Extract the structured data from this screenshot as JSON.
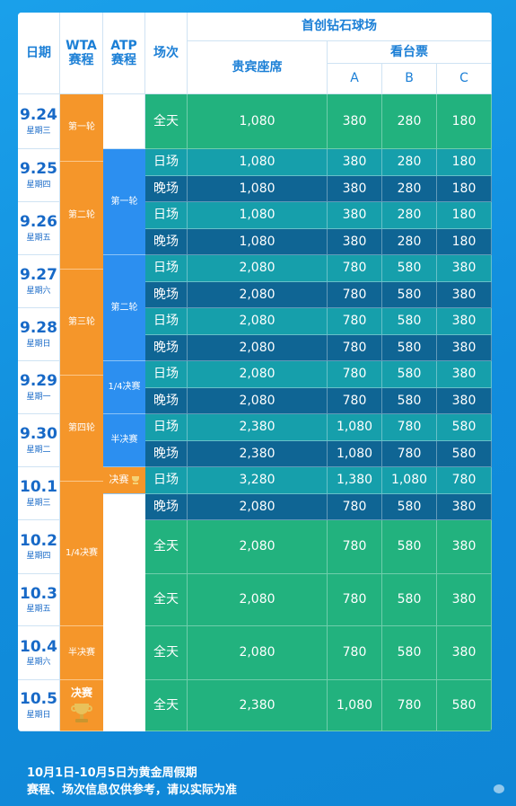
{
  "header": {
    "date": "日期",
    "wta": "WTA\n赛程",
    "atp": "ATP\n赛程",
    "session": "场次",
    "venue": "首创钻石球场",
    "vip": "贵宾座席",
    "stand": "看台票",
    "zone_a": "A",
    "zone_b": "B",
    "zone_c": "C"
  },
  "dates": [
    {
      "date": "9.24",
      "weekday": "星期三"
    },
    {
      "date": "9.25",
      "weekday": "星期四"
    },
    {
      "date": "9.26",
      "weekday": "星期五"
    },
    {
      "date": "9.27",
      "weekday": "星期六"
    },
    {
      "date": "9.28",
      "weekday": "星期日"
    },
    {
      "date": "9.29",
      "weekday": "星期一"
    },
    {
      "date": "9.30",
      "weekday": "星期二"
    },
    {
      "date": "10.1",
      "weekday": "星期三"
    },
    {
      "date": "10.2",
      "weekday": "星期四"
    },
    {
      "date": "10.3",
      "weekday": "星期五"
    },
    {
      "date": "10.4",
      "weekday": "星期六"
    },
    {
      "date": "10.5",
      "weekday": "星期日"
    }
  ],
  "wta_rounds": [
    "第一轮",
    "第二轮",
    "第三轮",
    "第四轮",
    "1/4决赛",
    "半决赛",
    "决赛"
  ],
  "atp_rounds": [
    "第一轮",
    "第二轮",
    "1/4决赛",
    "半决赛",
    "决赛"
  ],
  "rows": [
    {
      "session": "全天",
      "vip": "1,080",
      "a": "380",
      "b": "280",
      "c": "180"
    },
    {
      "session": "日场",
      "vip": "1,080",
      "a": "380",
      "b": "280",
      "c": "180"
    },
    {
      "session": "晚场",
      "vip": "1,080",
      "a": "380",
      "b": "280",
      "c": "180"
    },
    {
      "session": "日场",
      "vip": "1,080",
      "a": "380",
      "b": "280",
      "c": "180"
    },
    {
      "session": "晚场",
      "vip": "1,080",
      "a": "380",
      "b": "280",
      "c": "180"
    },
    {
      "session": "日场",
      "vip": "2,080",
      "a": "780",
      "b": "580",
      "c": "380"
    },
    {
      "session": "晚场",
      "vip": "2,080",
      "a": "780",
      "b": "580",
      "c": "380"
    },
    {
      "session": "日场",
      "vip": "2,080",
      "a": "780",
      "b": "580",
      "c": "380"
    },
    {
      "session": "晚场",
      "vip": "2,080",
      "a": "780",
      "b": "580",
      "c": "380"
    },
    {
      "session": "日场",
      "vip": "2,080",
      "a": "780",
      "b": "580",
      "c": "380"
    },
    {
      "session": "晚场",
      "vip": "2,080",
      "a": "780",
      "b": "580",
      "c": "380"
    },
    {
      "session": "日场",
      "vip": "2,380",
      "a": "1,080",
      "b": "780",
      "c": "580"
    },
    {
      "session": "晚场",
      "vip": "2,380",
      "a": "1,080",
      "b": "780",
      "c": "580"
    },
    {
      "session": "日场",
      "vip": "3,280",
      "a": "1,380",
      "b": "1,080",
      "c": "780"
    },
    {
      "session": "晚场",
      "vip": "2,080",
      "a": "780",
      "b": "580",
      "c": "380"
    },
    {
      "session": "全天",
      "vip": "2,080",
      "a": "780",
      "b": "580",
      "c": "380"
    },
    {
      "session": "全天",
      "vip": "2,080",
      "a": "780",
      "b": "580",
      "c": "380"
    },
    {
      "session": "全天",
      "vip": "2,080",
      "a": "780",
      "b": "580",
      "c": "380"
    },
    {
      "session": "全天",
      "vip": "2,380",
      "a": "1,080",
      "b": "780",
      "c": "580"
    }
  ],
  "notes": {
    "line1": "10月1日-10月5日为黄金周假期",
    "line2": "赛程、场次信息仅供参考，请以实际为准"
  },
  "colors": {
    "background": "#1593e0",
    "wta": "#f5962a",
    "atp": "#2c8ff0",
    "allday": "#22b27e",
    "day": "#169fab",
    "night": "#0f6594",
    "header_text": "#1b7fd6"
  },
  "icons": {
    "trophy": "trophy-icon",
    "weibo": "weibo-icon"
  }
}
